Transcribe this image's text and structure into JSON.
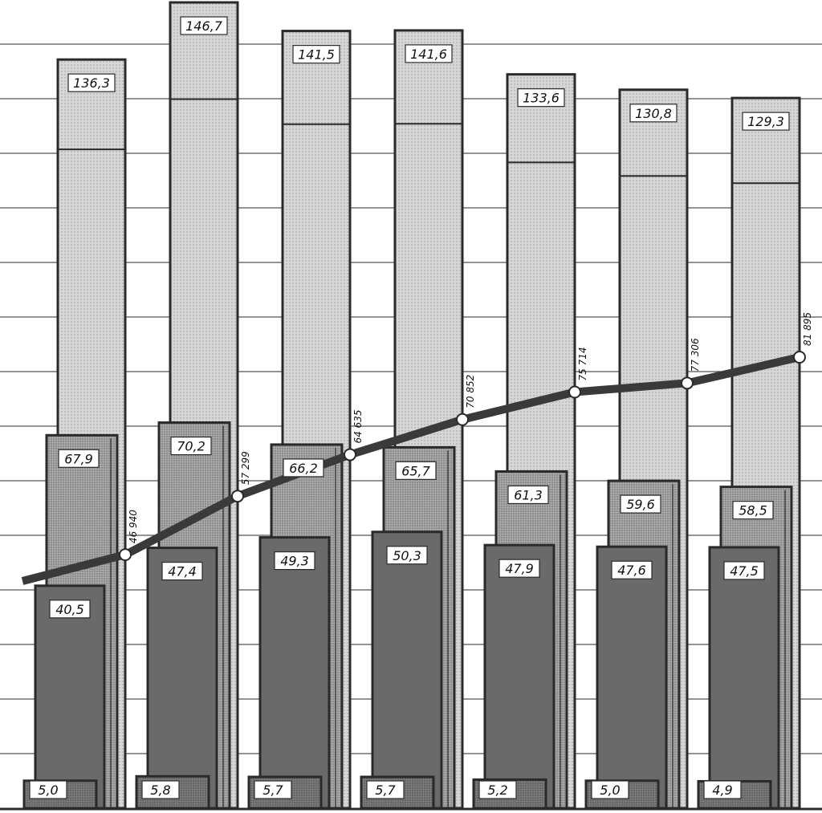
{
  "colors": {
    "tallest_series": "#bcbcbc",
    "tallest_series_top": "#d8d8d8",
    "second_series": "#9b9b9b",
    "third_series": "#6a6a6a",
    "fourth_series": "#8a8a8a",
    "outline": "#2a2a2a",
    "line": "#3a3a3a",
    "grid": "#555555"
  },
  "chart_data": {
    "type": "bar",
    "title": "",
    "xlabel": "",
    "ylabel": "",
    "categories": [
      "",
      "",
      "",
      "",
      "",
      "",
      ""
    ],
    "ylim": [
      0,
      150
    ],
    "grid": true,
    "legend": "none",
    "series": [
      {
        "kind": "bar",
        "values": [
          136.3,
          146.7,
          141.5,
          141.6,
          133.6,
          130.8,
          129.3
        ],
        "labels": [
          "136,3",
          "146,7",
          "141,5",
          "141,6",
          "133,6",
          "130,8",
          "129,3"
        ]
      },
      {
        "kind": "bar",
        "values": [
          67.9,
          70.2,
          66.2,
          65.7,
          61.3,
          59.6,
          58.5
        ],
        "labels": [
          "67,9",
          "70,2",
          "66,2",
          "65,7",
          "61,3",
          "59,6",
          "58,5"
        ]
      },
      {
        "kind": "bar",
        "values": [
          40.5,
          47.4,
          49.3,
          50.3,
          47.9,
          47.6,
          47.5
        ],
        "labels": [
          "40,5",
          "47,4",
          "49,3",
          "50,3",
          "47,9",
          "47,6",
          "47,5"
        ]
      },
      {
        "kind": "bar",
        "values": [
          5.0,
          5.8,
          5.7,
          5.7,
          5.2,
          5.0,
          4.9
        ],
        "labels": [
          "5,0",
          "5,8",
          "5,7",
          "5,7",
          "5,2",
          "5,0",
          "4,9"
        ]
      },
      {
        "kind": "line",
        "values": [
          46940,
          57299,
          64635,
          70852,
          75714,
          77306,
          81895
        ],
        "labels": [
          "46 940",
          "57 299",
          "64 635",
          "70 852",
          "75 714",
          "77 306",
          "81 895"
        ]
      }
    ]
  }
}
